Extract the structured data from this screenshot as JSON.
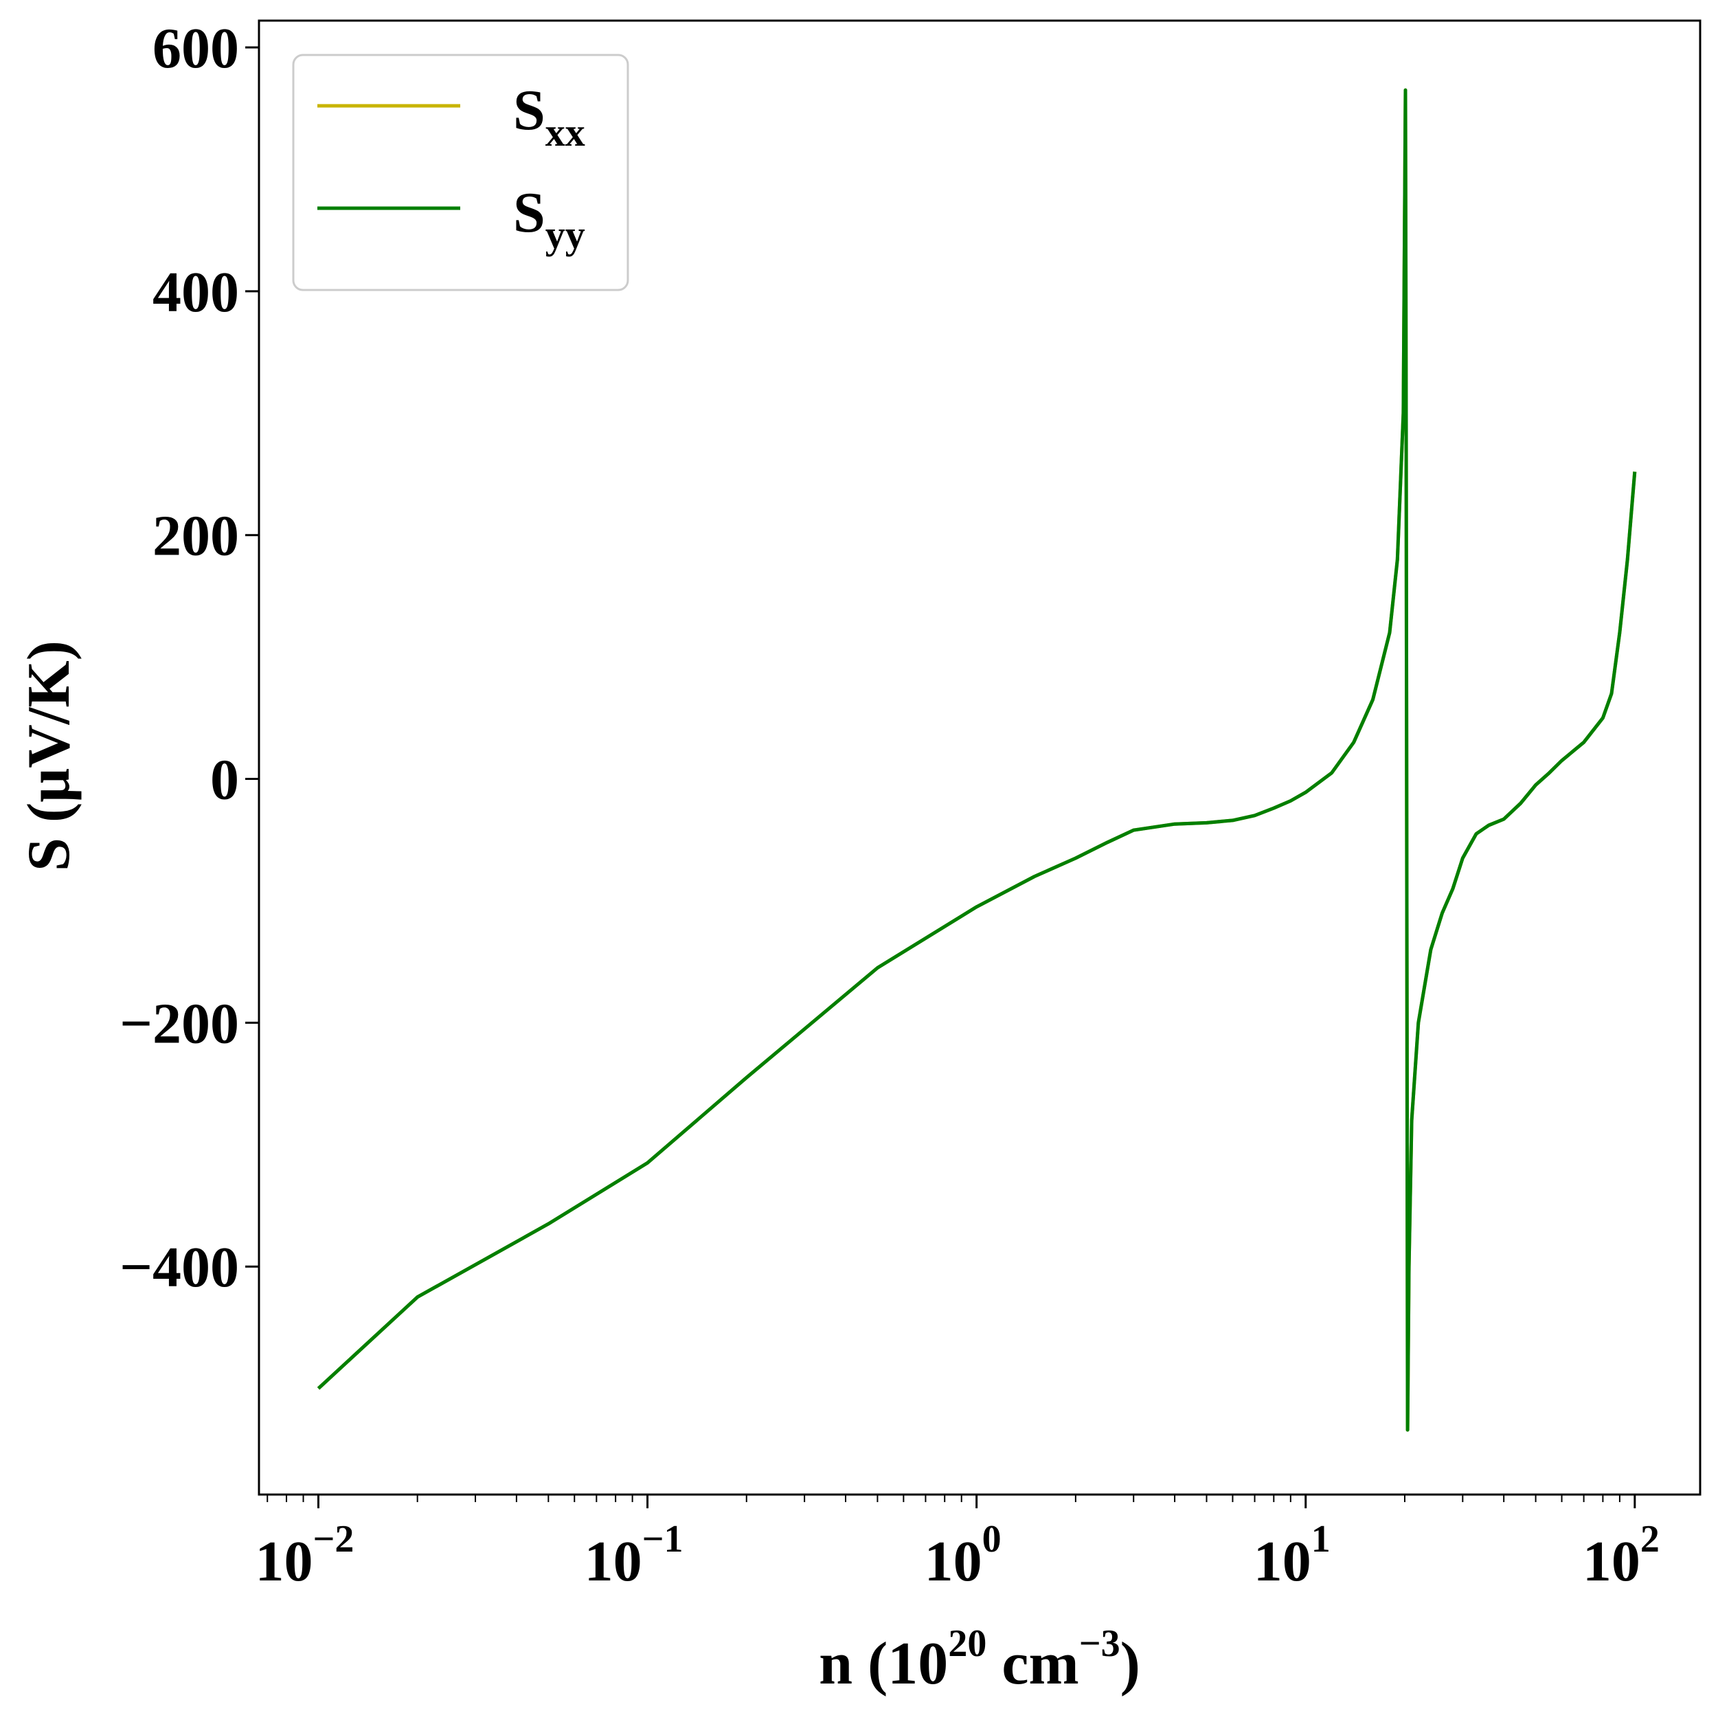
{
  "chart_data": {
    "type": "line",
    "xscale": "log",
    "xlim": [
      0.0066,
      158
    ],
    "ylim": [
      -587,
      622
    ],
    "grid": false,
    "legend_position": "top-left",
    "xlabel": {
      "base": "n (10",
      "exp1": "20",
      "mid": " cm",
      "exp2": "−3",
      "end": ")"
    },
    "ylabel": "S (μV/K)",
    "x_ticks": [
      {
        "value": 0.01,
        "base": "10",
        "exp": "−2"
      },
      {
        "value": 0.1,
        "base": "10",
        "exp": "−1"
      },
      {
        "value": 1,
        "base": "10",
        "exp": "0"
      },
      {
        "value": 10,
        "base": "10",
        "exp": "1"
      },
      {
        "value": 100,
        "base": "10",
        "exp": "2"
      }
    ],
    "y_ticks": [
      {
        "value": 600,
        "label": "600"
      },
      {
        "value": 400,
        "label": "400"
      },
      {
        "value": 200,
        "label": "200"
      },
      {
        "value": 0,
        "label": "0"
      },
      {
        "value": -200,
        "label": "−200"
      },
      {
        "value": -400,
        "label": "−400"
      }
    ],
    "series": [
      {
        "name": "S",
        "sub": "xx",
        "color": "#c8b400",
        "x": [
          0.01,
          0.02,
          0.05,
          0.1,
          0.2,
          0.5,
          1,
          1.5,
          2,
          2.5,
          3,
          4,
          5,
          6,
          7,
          8,
          9,
          10,
          12,
          14,
          16,
          18,
          19,
          19.8,
          20.1,
          20.2,
          20.4,
          20.6,
          21,
          22,
          24,
          26,
          28,
          30,
          33,
          36,
          40,
          45,
          50,
          55,
          60,
          70,
          80,
          85,
          90,
          95,
          100
        ],
        "y": [
          -500,
          -425,
          -365,
          -315,
          -245,
          -155,
          -105,
          -80,
          -65,
          -52,
          -42,
          -37,
          -36,
          -34,
          -30,
          -24,
          -18,
          -11,
          5,
          30,
          65,
          120,
          180,
          300,
          565,
          300,
          -534,
          -400,
          -280,
          -200,
          -140,
          -110,
          -90,
          -65,
          -45,
          -38,
          -33,
          -20,
          -5,
          5,
          15,
          30,
          50,
          70,
          120,
          180,
          252
        ]
      },
      {
        "name": "S",
        "sub": "yy",
        "color": "#007f00",
        "x": [
          0.01,
          0.02,
          0.05,
          0.1,
          0.2,
          0.5,
          1,
          1.5,
          2,
          2.5,
          3,
          4,
          5,
          6,
          7,
          8,
          9,
          10,
          12,
          14,
          16,
          18,
          19,
          19.8,
          20.1,
          20.2,
          20.4,
          20.6,
          21,
          22,
          24,
          26,
          28,
          30,
          33,
          36,
          40,
          45,
          50,
          55,
          60,
          70,
          80,
          85,
          90,
          95,
          100
        ],
        "y": [
          -500,
          -425,
          -365,
          -315,
          -245,
          -155,
          -105,
          -80,
          -65,
          -52,
          -42,
          -37,
          -36,
          -34,
          -30,
          -24,
          -18,
          -11,
          5,
          30,
          65,
          120,
          180,
          300,
          565,
          300,
          -534,
          -400,
          -280,
          -200,
          -140,
          -110,
          -90,
          -65,
          -45,
          -38,
          -33,
          -20,
          -5,
          5,
          15,
          30,
          50,
          70,
          120,
          180,
          252
        ]
      }
    ]
  }
}
